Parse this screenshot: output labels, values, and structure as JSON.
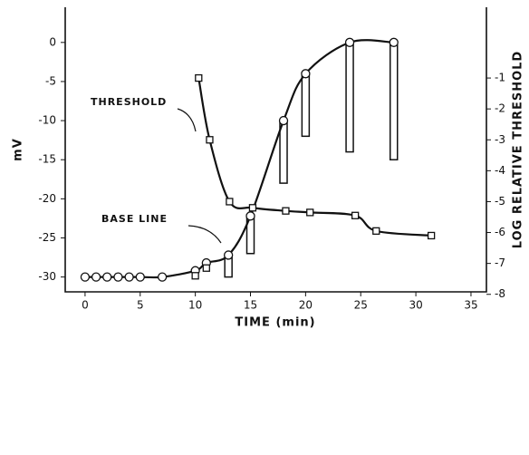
{
  "chart_data": {
    "type": "line",
    "x_label": "TIME (min)",
    "y_label": "mV",
    "y2_label": "LOG RELATIVE THRESHOLD",
    "annotations": [
      "THRESHOLD",
      "BASE LINE"
    ],
    "xlim": [
      -1.8,
      36.4
    ],
    "xticks": [
      0,
      5,
      10,
      15,
      20,
      25,
      30,
      35
    ],
    "ylim": [
      -31.9,
      4.5
    ],
    "yticks": [
      0,
      -5,
      -10,
      -15,
      -20,
      -25,
      -30
    ],
    "y2lim": [
      -7.92,
      1.29
    ],
    "y2ticks": [
      -1,
      -2,
      -3,
      -4,
      -5,
      -6,
      -7,
      -8
    ],
    "color": "#111111",
    "series": [
      {
        "marker": "circle",
        "x": [
          0,
          1,
          2,
          3,
          4,
          5,
          7,
          10,
          11,
          13,
          15,
          18,
          20,
          24,
          28
        ],
        "values": [
          -30,
          -30,
          -30,
          -30,
          -30,
          -30,
          -30,
          -29.2,
          -28.2,
          -27.2,
          -22.2,
          -10,
          -4,
          0,
          0
        ]
      },
      {
        "marker": "square",
        "axis": "y2",
        "x": [
          10.3,
          11.3,
          13.1,
          15.2,
          18.2,
          20.4,
          24.5,
          26.4,
          31.4
        ],
        "values": [
          -1,
          -3,
          -5,
          -5.2,
          -5.3,
          -5.35,
          -5.45,
          -5.95,
          -6.1
        ]
      },
      {
        "marker": "square",
        "axis": "y2",
        "line": false,
        "x": [
          10,
          11
        ],
        "values": [
          -7.4,
          -7.15
        ]
      }
    ],
    "bars": {
      "x": [
        13,
        15,
        18,
        20,
        24,
        28
      ],
      "values": [
        -30,
        -27,
        -18,
        -12,
        -14,
        -15
      ]
    }
  }
}
